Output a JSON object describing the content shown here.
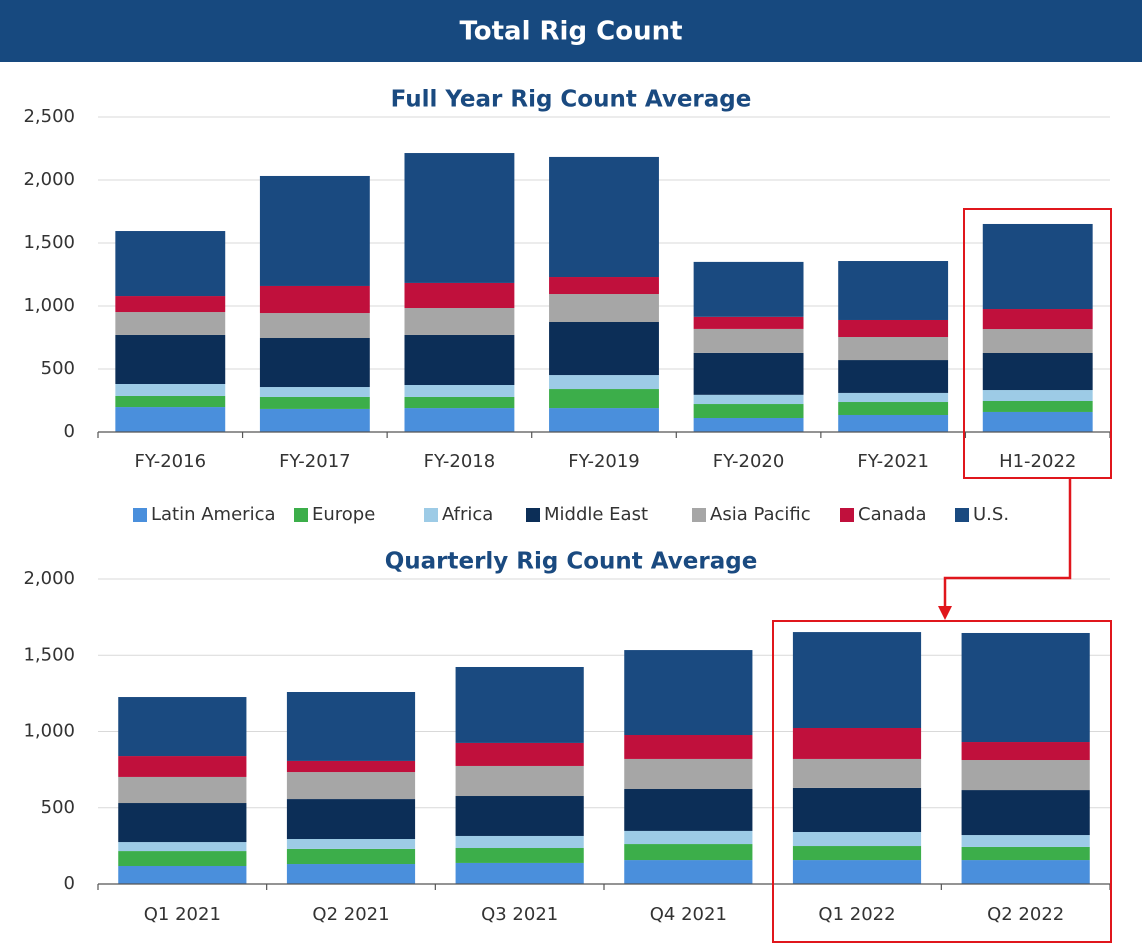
{
  "header": {
    "title": "Total Rig Count"
  },
  "chart_data": [
    {
      "type": "bar",
      "stacked": true,
      "title": "Full Year Rig Count Average",
      "categories": [
        "FY-2016",
        "FY-2017",
        "FY-2018",
        "FY-2019",
        "FY-2020",
        "FY-2021",
        "H1-2022"
      ],
      "series": [
        {
          "name": "Latin America",
          "color": "#4a8fdc",
          "values": [
            198,
            183,
            190,
            190,
            111,
            135,
            159
          ]
        },
        {
          "name": "Europe",
          "color": "#3cae4a",
          "values": [
            88,
            95,
            88,
            151,
            111,
            103,
            87
          ]
        },
        {
          "name": "Africa",
          "color": "#9dcbe6",
          "values": [
            95,
            79,
            95,
            111,
            73,
            72,
            87
          ]
        },
        {
          "name": "Middle East",
          "color": "#0c2e57",
          "values": [
            389,
            389,
            397,
            421,
            333,
            261,
            294
          ]
        },
        {
          "name": "Asia Pacific",
          "color": "#a6a6a6",
          "values": [
            182,
            198,
            214,
            222,
            190,
            183,
            190
          ]
        },
        {
          "name": "Canada",
          "color": "#c0103c",
          "values": [
            127,
            215,
            199,
            135,
            96,
            135,
            159
          ]
        },
        {
          "name": "U.S.",
          "color": "#1a4a80",
          "values": [
            516,
            873,
            1031,
            953,
            436,
            468,
            675
          ]
        }
      ],
      "ylim": [
        0,
        2500
      ],
      "yticks": [
        0,
        500,
        {
          "value": 1000,
          "label": "1,000"
        },
        {
          "value": 1500,
          "label": "1,500"
        },
        {
          "value": 2000,
          "label": "2,000"
        },
        {
          "value": 2500,
          "label": "2,500"
        }
      ],
      "grid": true,
      "legend": "bottom"
    },
    {
      "type": "bar",
      "stacked": true,
      "title": "Quarterly Rig Count Average",
      "categories": [
        "Q1 2021",
        "Q2 2021",
        "Q3 2021",
        "Q4 2021",
        "Q1 2022",
        "Q2 2022"
      ],
      "series": [
        {
          "name": "Latin America",
          "color": "#4a8fdc",
          "values": [
            118,
            131,
            138,
            157,
            157,
            157
          ]
        },
        {
          "name": "Europe",
          "color": "#3cae4a",
          "values": [
            98,
            99,
            98,
            105,
            92,
            86
          ]
        },
        {
          "name": "Africa",
          "color": "#9dcbe6",
          "values": [
            59,
            65,
            79,
            86,
            92,
            78
          ]
        },
        {
          "name": "Middle East",
          "color": "#0c2e57",
          "values": [
            256,
            262,
            262,
            275,
            289,
            295
          ]
        },
        {
          "name": "Asia Pacific",
          "color": "#a6a6a6",
          "values": [
            171,
            177,
            197,
            197,
            190,
            197
          ]
        },
        {
          "name": "Canada",
          "color": "#c0103c",
          "values": [
            137,
            73,
            151,
            157,
            203,
            118
          ]
        },
        {
          "name": "U.S.",
          "color": "#1a4a80",
          "values": [
            387,
            452,
            498,
            557,
            629,
            715
          ]
        }
      ],
      "ylim": [
        0,
        2000
      ],
      "yticks": [
        0,
        500,
        {
          "value": 1000,
          "label": "1,000"
        },
        {
          "value": 1500,
          "label": "1,500"
        },
        {
          "value": 2000,
          "label": "2,000"
        }
      ],
      "grid": true,
      "legend": "none"
    }
  ]
}
